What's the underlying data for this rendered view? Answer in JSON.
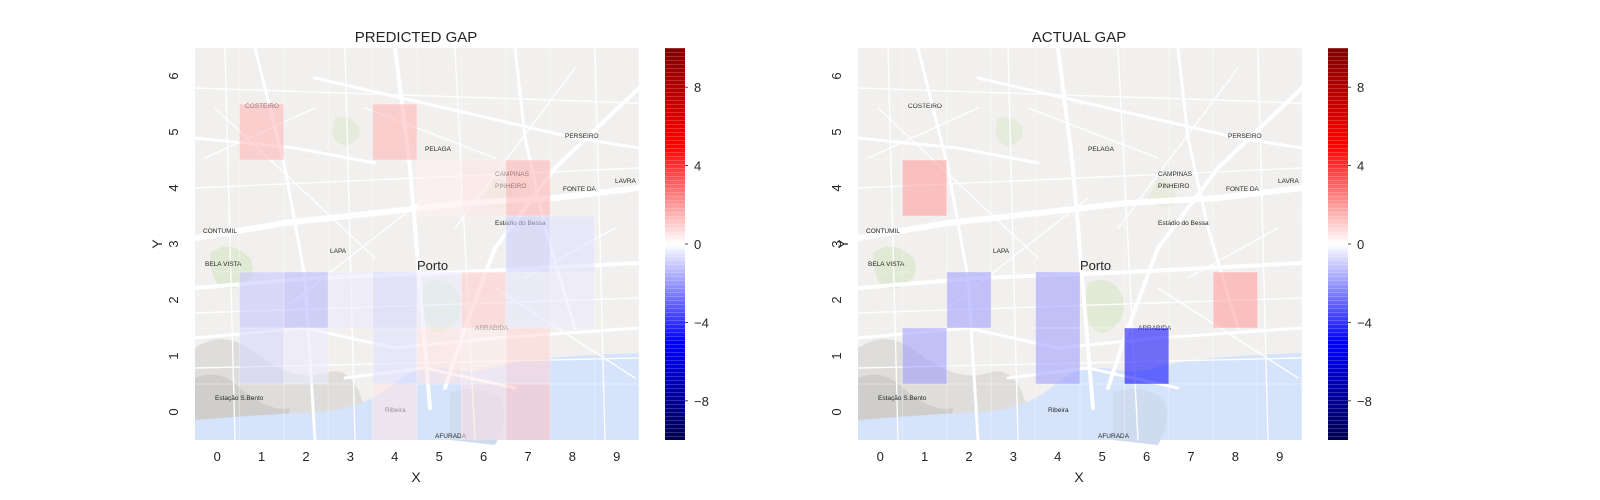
{
  "chart_data": [
    {
      "type": "heatmap",
      "title": "PREDICTED GAP",
      "xlabel": "X",
      "ylabel": "Y",
      "x_ticks": [
        "0",
        "1",
        "2",
        "3",
        "4",
        "5",
        "6",
        "7",
        "8",
        "9"
      ],
      "y_ticks": [
        "0",
        "1",
        "2",
        "3",
        "4",
        "5",
        "6"
      ],
      "xlim": [
        -0.5,
        9.5
      ],
      "ylim": [
        -0.5,
        6.5
      ],
      "colormap": "seismic",
      "vmin": -10,
      "vmax": 10,
      "colorbar_ticks": [
        "8",
        "4",
        "0",
        "−4",
        "−8"
      ],
      "colorbar_values": [
        8,
        4,
        0,
        -4,
        -8
      ],
      "background": "street map",
      "grid": true,
      "cells": [
        {
          "x": 1,
          "y": 5,
          "value": 1.5
        },
        {
          "x": 4,
          "y": 5,
          "value": 1.5
        },
        {
          "x": 7,
          "y": 4,
          "value": 1.5
        },
        {
          "x": 6,
          "y": 4,
          "value": 0.5
        },
        {
          "x": 5,
          "y": 4,
          "value": 0.3
        },
        {
          "x": 7,
          "y": 3,
          "value": -1.0
        },
        {
          "x": 8,
          "y": 3,
          "value": -0.6
        },
        {
          "x": 1,
          "y": 2,
          "value": -1.2
        },
        {
          "x": 2,
          "y": 2,
          "value": -1.5
        },
        {
          "x": 3,
          "y": 2,
          "value": -0.4
        },
        {
          "x": 4,
          "y": 2,
          "value": -0.8
        },
        {
          "x": 5,
          "y": 2,
          "value": -0.4
        },
        {
          "x": 6,
          "y": 2,
          "value": 1.0
        },
        {
          "x": 7,
          "y": 2,
          "value": -0.5
        },
        {
          "x": 8,
          "y": 2,
          "value": -0.4
        },
        {
          "x": 1,
          "y": 1,
          "value": -0.8
        },
        {
          "x": 2,
          "y": 1,
          "value": -0.4
        },
        {
          "x": 4,
          "y": 1,
          "value": -0.6
        },
        {
          "x": 5,
          "y": 1,
          "value": 0.5
        },
        {
          "x": 6,
          "y": 1,
          "value": 0.4
        },
        {
          "x": 7,
          "y": 1,
          "value": 0.8
        },
        {
          "x": 4,
          "y": 0,
          "value": 0.5
        },
        {
          "x": 6,
          "y": 0,
          "value": 0.6
        },
        {
          "x": 7,
          "y": 0,
          "value": 1.2
        }
      ]
    },
    {
      "type": "heatmap",
      "title": "ACTUAL GAP",
      "xlabel": "X",
      "ylabel": "Y",
      "x_ticks": [
        "0",
        "1",
        "2",
        "3",
        "4",
        "5",
        "6",
        "7",
        "8",
        "9"
      ],
      "y_ticks": [
        "0",
        "1",
        "2",
        "3",
        "4",
        "5",
        "6"
      ],
      "xlim": [
        -0.5,
        9.5
      ],
      "ylim": [
        -0.5,
        6.5
      ],
      "colormap": "seismic",
      "vmin": -10,
      "vmax": 10,
      "colorbar_ticks": [
        "8",
        "4",
        "0",
        "−4",
        "−8"
      ],
      "colorbar_values": [
        8,
        4,
        0,
        -4,
        -8
      ],
      "background": "street map",
      "grid": true,
      "cells": [
        {
          "x": 1,
          "y": 4,
          "value": 2.0
        },
        {
          "x": 2,
          "y": 2,
          "value": -2.0
        },
        {
          "x": 4,
          "y": 2,
          "value": -2.0
        },
        {
          "x": 8,
          "y": 2,
          "value": 2.0
        },
        {
          "x": 1,
          "y": 1,
          "value": -2.0
        },
        {
          "x": 4,
          "y": 1,
          "value": -2.0
        },
        {
          "x": 6,
          "y": 1,
          "value": -5.0
        }
      ]
    }
  ]
}
